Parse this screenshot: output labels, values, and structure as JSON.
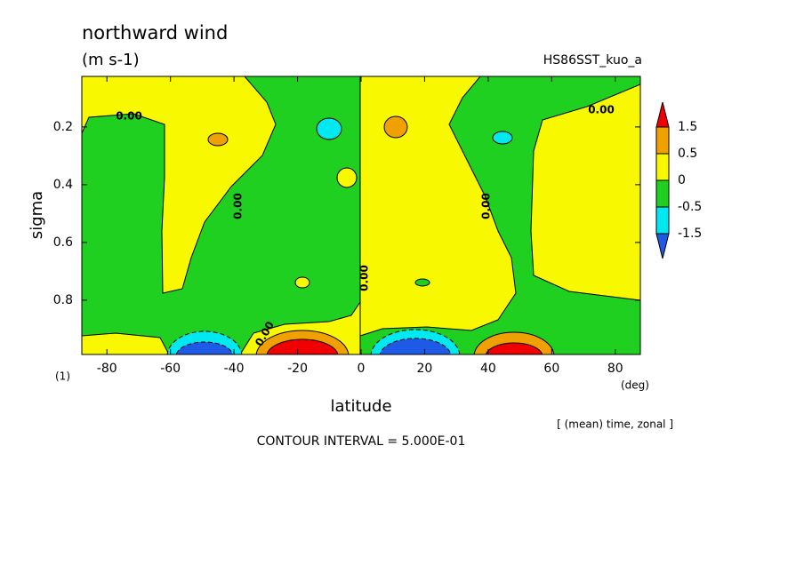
{
  "chart_data": {
    "type": "contour",
    "title": "northward wind",
    "units": "(m s-1)",
    "run_name": "HS86SST_kuo_a",
    "xlabel": "latitude",
    "xunit": "(deg)",
    "ylabel": "sigma",
    "level_note": "(1)",
    "averaging": "[ (mean) time, zonal ]",
    "contour_interval": "CONTOUR INTERVAL = 5.000E-01",
    "xlim": [
      -87.9,
      87.9
    ],
    "xticks": [
      -80,
      -60,
      -40,
      -20,
      0,
      20,
      40,
      60,
      80
    ],
    "ylim": [
      0.025,
      0.988
    ],
    "yticks": [
      0.2,
      0.4,
      0.6,
      0.8
    ],
    "y_inverted": true,
    "legend_levels": [
      1.5,
      0.5,
      0,
      -0.5,
      -1.5
    ],
    "legend_colors": [
      "#f00000",
      "#f0a000",
      "#f8f800",
      "#20d020",
      "#00e8f0",
      "#1e5ae6"
    ],
    "contour_labels": [
      "0.00",
      "0.00",
      "0.00",
      "0.00",
      "0.00",
      "0.00"
    ]
  }
}
